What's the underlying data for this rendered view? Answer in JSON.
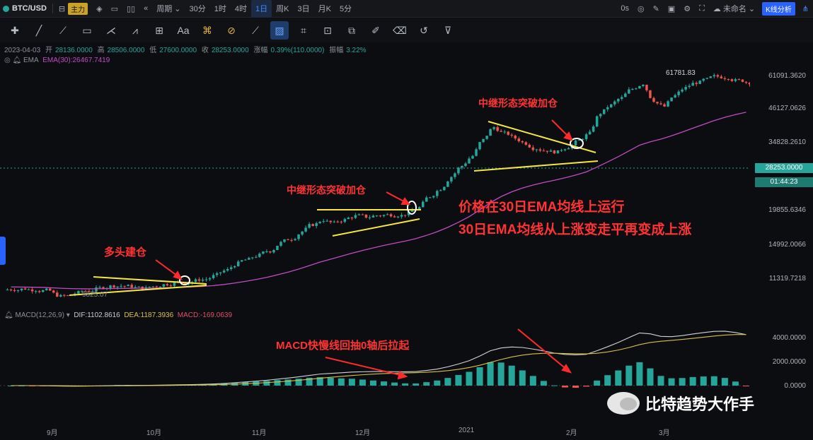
{
  "topbar": {
    "symbol": "BTC/USD",
    "main_badge": "主力",
    "periods": [
      "周期",
      "30分",
      "1时",
      "4时",
      "1日",
      "周K",
      "3日",
      "月K",
      "5分"
    ],
    "active_period": "1日",
    "countdown_label": "0s",
    "layout_name": "未命名",
    "kline_button": "K线分析"
  },
  "ohlc": {
    "date": "2023-04-03",
    "open_label": "开",
    "open": "28136.0000",
    "high_label": "高",
    "high": "28506.0000",
    "low_label": "低",
    "low": "27600.0000",
    "close_label": "收",
    "close": "28253.0000",
    "change_label": "涨幅",
    "change": "0.39%(110.0000)",
    "amp_label": "振幅",
    "amp": "3.22%"
  },
  "ema": {
    "name": "EMA",
    "value_text": "EMA(30):26467.7419"
  },
  "macd": {
    "name": "MACD(12,26,9)",
    "dif": "DIF:1102.8616",
    "dea": "DEA:1187.3936",
    "macd": "MACD:-169.0639"
  },
  "price_axis": [
    "61091.3620",
    "46127.0626",
    "34828.2610",
    "19855.6346",
    "14992.0066",
    "11319.7218"
  ],
  "last_price": "28253.0000",
  "last_time": "01:44:23",
  "macd_axis": [
    "4000.0000",
    "2000.0000",
    "0.0000"
  ],
  "x_axis": [
    "9月",
    "10月",
    "11月",
    "12月",
    "2021",
    "2月",
    "3月"
  ],
  "labels": {
    "high_marker": "61781.83",
    "low_marker": "9825.07"
  },
  "annotations": {
    "long_entry": "多头建仓",
    "breakout_add_1": "中继形态突破加仓",
    "breakout_add_2": "中继形态突破加仓",
    "ema_line1": "价格在30日EMA均线上运行",
    "ema_line2": "30日EMA均线从上涨变走平再变成上涨",
    "macd_note": "MACD快慢线回抽0轴后拉起"
  },
  "watermark": "比特趋势大作手",
  "colors": {
    "up": "#26a69a",
    "down": "#ef5350",
    "ema": "#c04cc3",
    "annot": "#ff3333",
    "trend": "#f5e642",
    "dif": "#d0d3d8",
    "dea": "#d7c14a"
  },
  "chart_data": {
    "type": "candlestick",
    "price_close": [
      10400,
      10450,
      10350,
      10300,
      9900,
      9825,
      10100,
      10250,
      10500,
      10650,
      10700,
      10650,
      10500,
      10650,
      10800,
      10900,
      11000,
      11150,
      11300,
      11700,
      12200,
      12900,
      13300,
      13800,
      14300,
      15300,
      15800,
      16800,
      17800,
      18500,
      18000,
      18500,
      19100,
      19000,
      19200,
      19300,
      19250,
      19500,
      20500,
      22500,
      24000,
      26500,
      29000,
      31500,
      36000,
      40000,
      38000,
      36500,
      35000,
      33500,
      33000,
      32500,
      34000,
      35800,
      38000,
      45000,
      48000,
      51000,
      55000,
      57500,
      50000,
      47500,
      52000,
      55500,
      58000,
      59500,
      61000,
      60500,
      59000,
      58000
    ],
    "ema30_end": 26467.7419,
    "dif_end": 1102.8616,
    "dea_end": 1187.3936,
    "macd_end": -169.0639
  }
}
